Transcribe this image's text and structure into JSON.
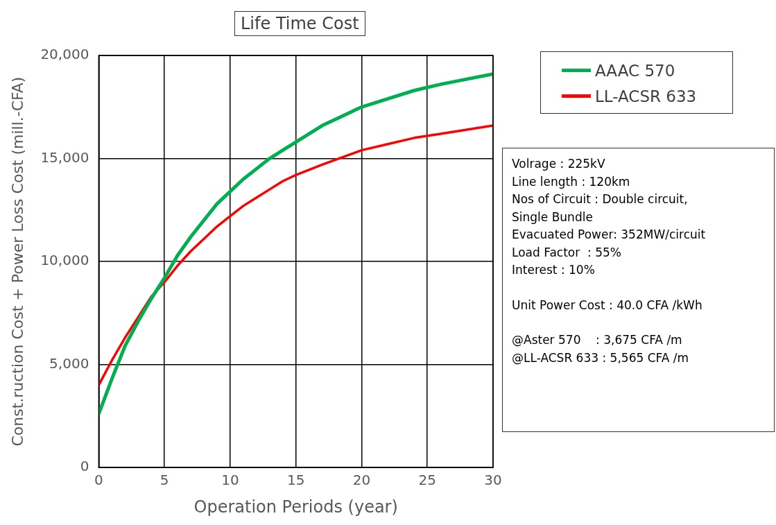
{
  "chart_data": {
    "type": "line",
    "title": "Life Time Cost",
    "xlabel": "Operation Periods (year)",
    "ylabel": "Const.ruction Cost + Power Loss Cost (mill.-CFA)",
    "x": [
      0,
      1,
      2,
      3,
      4,
      5,
      6,
      7,
      8,
      9,
      10,
      11,
      12,
      13,
      14,
      15,
      17,
      20,
      22,
      24,
      26,
      28,
      30
    ],
    "series": [
      {
        "name": "AAAC 570",
        "color": "#00b050",
        "values": [
          2600,
          4300,
          5900,
          7100,
          8200,
          9200,
          10300,
          11200,
          12000,
          12800,
          13400,
          14000,
          14500,
          15000,
          15400,
          15800,
          16600,
          17500,
          17900,
          18300,
          18600,
          18850,
          19100
        ]
      },
      {
        "name": "LL-ACSR 633",
        "color": "#ff0000",
        "values": [
          4000,
          5200,
          6300,
          7300,
          8300,
          9000,
          9800,
          10500,
          11100,
          11700,
          12200,
          12700,
          13100,
          13500,
          13900,
          14200,
          14700,
          15400,
          15700,
          16000,
          16200,
          16400,
          16600
        ]
      }
    ],
    "xlim": [
      0,
      30
    ],
    "xticks": [
      0,
      5,
      10,
      15,
      20,
      25,
      30
    ],
    "ylim": [
      0,
      20000
    ],
    "yticks": [
      0,
      {
        "value": 5000,
        "label": "5,000"
      },
      {
        "value": 10000,
        "label": "10,000"
      },
      {
        "value": 15000,
        "label": "15,000"
      },
      {
        "value": 20000,
        "label": "20,000"
      }
    ],
    "grid": true,
    "legend": "top right",
    "marker": "none",
    "line_style": "solid",
    "annotations": [
      "Volrage : 225kV\nLine length : 120km\nNos of Circuit : Double circuit,\nSingle Bundle\nEvacuated Power: 352MW/circuit\nLoad Factor  : 55%\nInterest : 10%",
      "Unit Power Cost : 40.0 CFA /kWh",
      "@Aster 570    : 3,675 CFA /m\n@LL-ACSR 633 : 5,565 CFA /m"
    ]
  }
}
